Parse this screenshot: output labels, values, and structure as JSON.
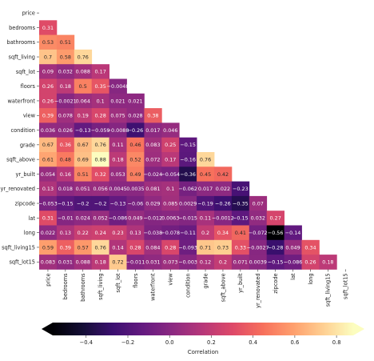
{
  "chart_data": {
    "type": "heatmap",
    "variables": [
      "price",
      "bedrooms",
      "bathrooms",
      "sqft_living",
      "sqft_lot",
      "floors",
      "waterfront",
      "view",
      "condition",
      "grade",
      "sqft_above",
      "yr_built",
      "yr_renovated",
      "zipcode",
      "lat",
      "long",
      "sqft_living15",
      "sqft_lot15"
    ],
    "rows": [
      {
        "label": "price",
        "values": []
      },
      {
        "label": "bedrooms",
        "values": [
          0.31
        ]
      },
      {
        "label": "bathrooms",
        "values": [
          0.53,
          0.51
        ]
      },
      {
        "label": "sqft_living",
        "values": [
          0.7,
          0.58,
          0.76
        ]
      },
      {
        "label": "sqft_lot",
        "values": [
          0.09,
          0.032,
          0.088,
          0.17
        ]
      },
      {
        "label": "floors",
        "values": [
          0.26,
          0.18,
          0.5,
          0.35,
          -0.0048
        ]
      },
      {
        "label": "waterfront",
        "values": [
          0.26,
          -0.0021,
          0.064,
          0.1,
          0.021,
          0.021
        ]
      },
      {
        "label": "view",
        "values": [
          0.39,
          0.078,
          0.19,
          0.28,
          0.075,
          0.028,
          0.38
        ]
      },
      {
        "label": "condition",
        "values": [
          0.036,
          0.026,
          -0.13,
          -0.059,
          -0.0088,
          -0.26,
          0.017,
          0.046
        ]
      },
      {
        "label": "grade",
        "values": [
          0.67,
          0.36,
          0.67,
          0.76,
          0.11,
          0.46,
          0.083,
          0.25,
          -0.15
        ]
      },
      {
        "label": "sqft_above",
        "values": [
          0.61,
          0.48,
          0.69,
          0.88,
          0.18,
          0.52,
          0.072,
          0.17,
          -0.16,
          0.76
        ]
      },
      {
        "label": "yr_built",
        "values": [
          0.054,
          0.16,
          0.51,
          0.32,
          0.053,
          0.49,
          -0.024,
          -0.054,
          -0.36,
          0.45,
          0.42
        ]
      },
      {
        "label": "yr_renovated",
        "values": [
          0.13,
          0.018,
          0.051,
          0.056,
          0.0045,
          0.0035,
          0.081,
          0.1,
          -0.062,
          0.017,
          0.022,
          -0.23
        ]
      },
      {
        "label": "zipcode",
        "values": [
          -0.053,
          -0.15,
          -0.2,
          -0.2,
          -0.13,
          -0.06,
          0.029,
          0.085,
          0.0029,
          -0.19,
          -0.26,
          -0.35,
          0.07
        ]
      },
      {
        "label": "lat",
        "values": [
          0.31,
          -0.01,
          0.024,
          0.052,
          -0.086,
          0.049,
          -0.012,
          0.0063,
          -0.015,
          0.11,
          -0.0012,
          -0.15,
          0.032,
          0.27
        ]
      },
      {
        "label": "long",
        "values": [
          0.022,
          0.13,
          0.22,
          0.24,
          0.23,
          0.13,
          -0.038,
          -0.078,
          -0.11,
          0.2,
          0.34,
          0.41,
          -0.072,
          -0.56,
          -0.14
        ]
      },
      {
        "label": "sqft_living15",
        "values": [
          0.59,
          0.39,
          0.57,
          0.76,
          0.14,
          0.28,
          0.084,
          0.28,
          -0.093,
          0.71,
          0.73,
          0.33,
          -0.0027,
          -0.28,
          0.049,
          0.34
        ]
      },
      {
        "label": "sqft_lot15",
        "values": [
          0.083,
          0.031,
          0.088,
          0.18,
          0.72,
          -0.011,
          0.031,
          0.073,
          -0.003,
          0.12,
          0.2,
          0.071,
          0.0039,
          -0.15,
          -0.086,
          0.26,
          0.18
        ]
      }
    ],
    "colormap": "magma",
    "vmin": -0.56,
    "vmax": 0.88,
    "colorbar": {
      "orientation": "horizontal",
      "label": "Correlation",
      "ticks": [
        -0.4,
        -0.2,
        0.0,
        0.2,
        0.4,
        0.6,
        0.8
      ],
      "tick_labels": [
        "−0.4",
        "−0.2",
        "0.0",
        "0.2",
        "0.4",
        "0.6",
        "0.8"
      ],
      "extend": "both"
    },
    "mask": "upper-triangle"
  }
}
